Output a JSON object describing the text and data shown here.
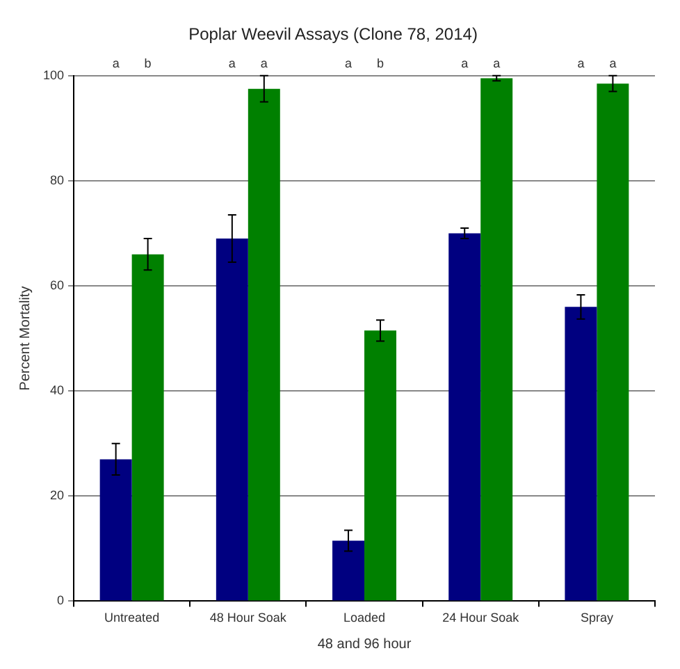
{
  "chart_data": {
    "type": "bar",
    "title": "Poplar Weevil Assays (Clone 78, 2014)",
    "xlabel": "48 and 96 hour",
    "ylabel": "Percent Mortality",
    "categories": [
      "Untreated",
      "48 Hour Soak",
      "Loaded",
      "24 Hour Soak",
      "Spray"
    ],
    "series": [
      {
        "color": "#000080",
        "values": [
          27,
          69,
          11.5,
          70,
          56
        ],
        "errors": [
          3,
          4.5,
          2,
          1,
          2.3
        ]
      },
      {
        "color": "#008000",
        "values": [
          66,
          97.5,
          51.5,
          99.5,
          98.5
        ],
        "errors": [
          3,
          2.5,
          2,
          0.5,
          1.5
        ]
      }
    ],
    "ylim": [
      0,
      100
    ],
    "yticks": [
      0,
      20,
      40,
      60,
      80,
      100
    ],
    "grid": "y",
    "legend": false,
    "annotations": [
      "a",
      "b",
      "a",
      "a",
      "a",
      "b",
      "a",
      "a",
      "a",
      "a"
    ]
  }
}
